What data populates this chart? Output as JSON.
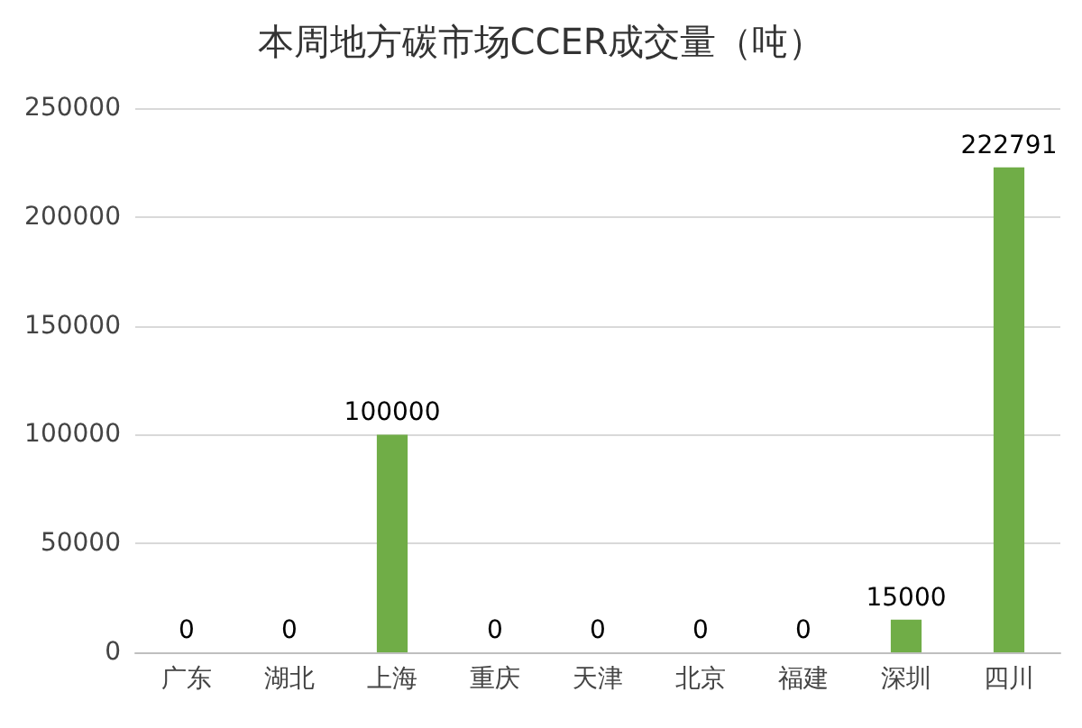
{
  "chart_data": {
    "type": "bar",
    "title": "本周地方碳市场CCER成交量（吨）",
    "categories": [
      "广东",
      "湖北",
      "上海",
      "重庆",
      "天津",
      "北京",
      "福建",
      "深圳",
      "四川"
    ],
    "values": [
      0,
      0,
      100000,
      0,
      0,
      0,
      0,
      15000,
      222791
    ],
    "color": "#70ad47",
    "ylim": [
      0,
      250000
    ],
    "yticks": [
      0,
      50000,
      100000,
      150000,
      200000,
      250000
    ],
    "grid": "y",
    "data_labels": true
  }
}
